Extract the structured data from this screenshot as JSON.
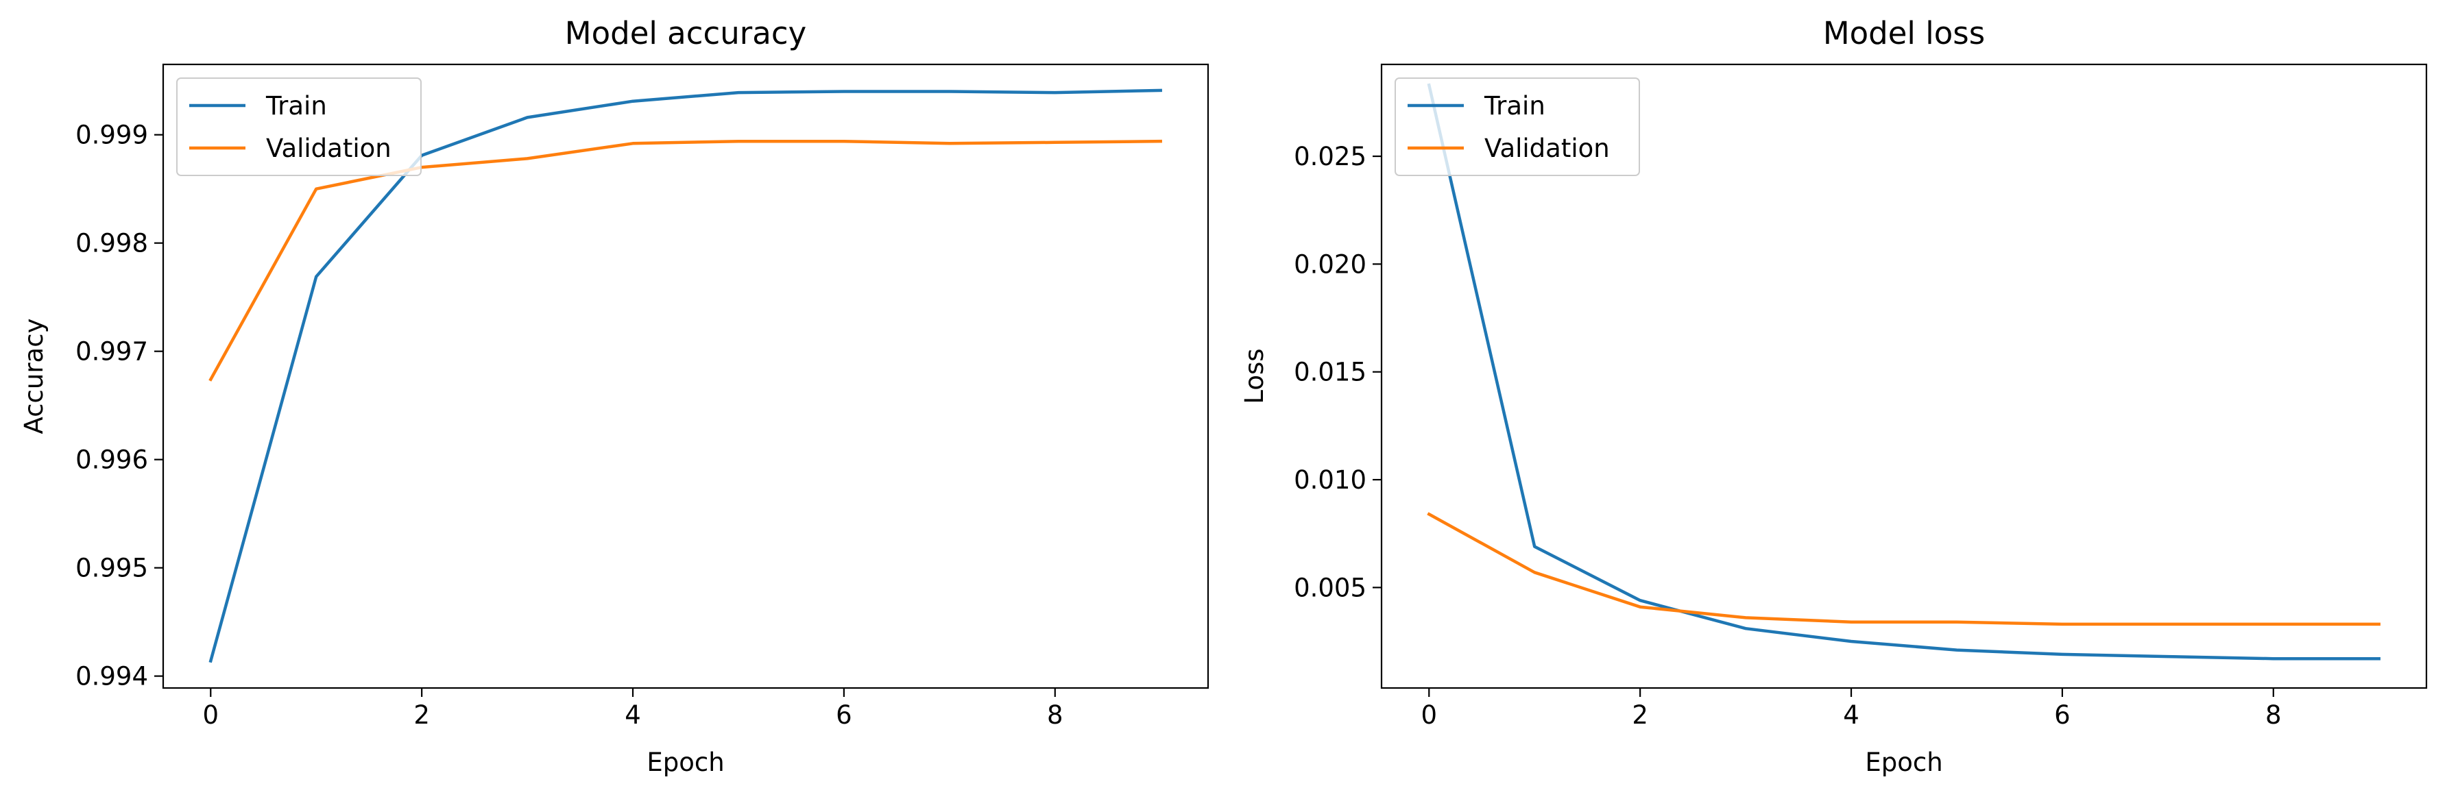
{
  "chart_data": [
    {
      "type": "line",
      "title": "Model accuracy",
      "xlabel": "Epoch",
      "ylabel": "Accuracy",
      "xlim": [
        -0.45,
        9.45
      ],
      "ylim": [
        0.99389,
        0.99965
      ],
      "xticks": [
        0,
        2,
        4,
        6,
        8
      ],
      "xtick_labels": [
        "0",
        "2",
        "4",
        "6",
        "8"
      ],
      "yticks": [
        0.994,
        0.995,
        0.996,
        0.997,
        0.998,
        0.999
      ],
      "ytick_labels": [
        "0.994",
        "0.995",
        "0.996",
        "0.997",
        "0.998",
        "0.999"
      ],
      "x": [
        0,
        1,
        2,
        3,
        4,
        5,
        6,
        7,
        8,
        9
      ],
      "series": [
        {
          "name": "Train",
          "color": "#1f77b4",
          "values": [
            0.99414,
            0.99769,
            0.99881,
            0.99916,
            0.99931,
            0.99939,
            0.9994,
            0.9994,
            0.99939,
            0.99941
          ]
        },
        {
          "name": "Validation",
          "color": "#ff7f0e",
          "values": [
            0.99674,
            0.9985,
            0.9987,
            0.99878,
            0.99892,
            0.99894,
            0.99894,
            0.99892,
            0.99893,
            0.99894
          ]
        }
      ],
      "legend": "upper left",
      "grid": false
    },
    {
      "type": "line",
      "title": "Model loss",
      "xlabel": "Epoch",
      "ylabel": "Loss",
      "xlim": [
        -0.45,
        9.45
      ],
      "ylim": [
        0.00034,
        0.02926
      ],
      "xticks": [
        0,
        2,
        4,
        6,
        8
      ],
      "xtick_labels": [
        "0",
        "2",
        "4",
        "6",
        "8"
      ],
      "yticks": [
        0.005,
        0.01,
        0.015,
        0.02,
        0.025
      ],
      "ytick_labels": [
        "0.005",
        "0.010",
        "0.015",
        "0.020",
        "0.025"
      ],
      "x": [
        0,
        1,
        2,
        3,
        4,
        5,
        6,
        7,
        8,
        9
      ],
      "series": [
        {
          "name": "Train",
          "color": "#1f77b4",
          "values": [
            0.0283,
            0.0069,
            0.0044,
            0.0031,
            0.0025,
            0.0021,
            0.0019,
            0.0018,
            0.0017,
            0.0017
          ]
        },
        {
          "name": "Validation",
          "color": "#ff7f0e",
          "values": [
            0.0084,
            0.0057,
            0.0041,
            0.0036,
            0.0034,
            0.0034,
            0.0033,
            0.0033,
            0.0033,
            0.0033
          ]
        }
      ],
      "legend": "upper left",
      "grid": false
    }
  ]
}
